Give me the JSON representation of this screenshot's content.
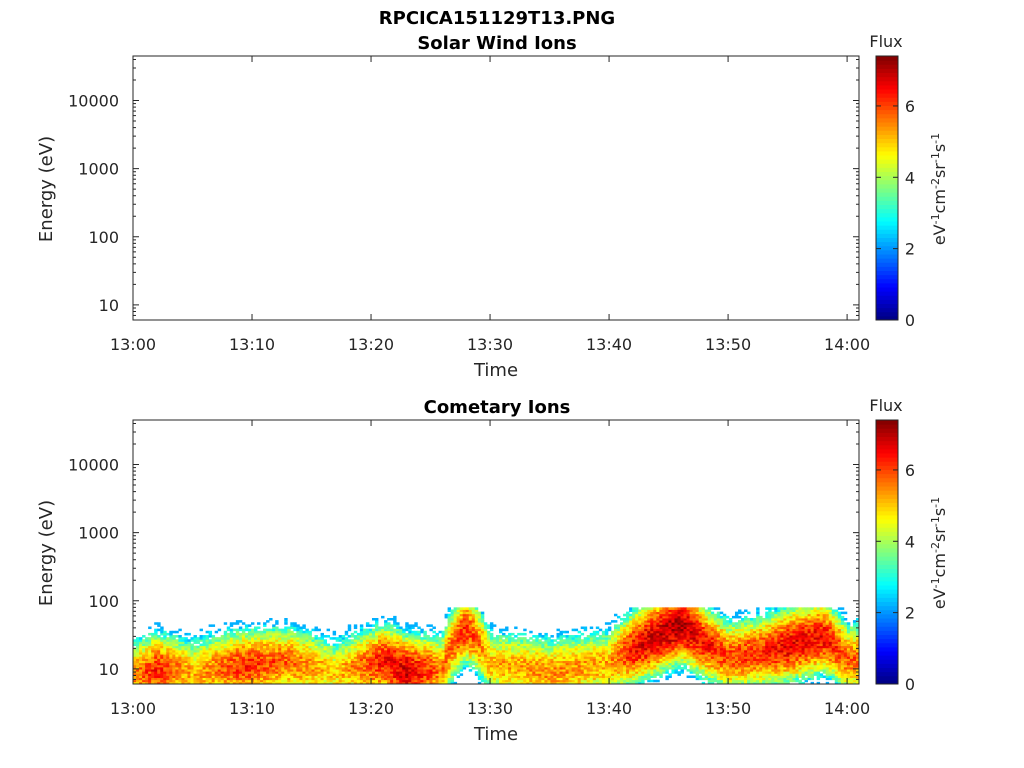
{
  "figure": {
    "title": "RPCICA151129T13.PNG"
  },
  "chart_data": [
    {
      "type": "heatmap",
      "title": "Solar Wind Ions",
      "xlabel": "Time",
      "ylabel": "Energy (eV)",
      "x_ticks": [
        "13:00",
        "13:10",
        "13:20",
        "13:30",
        "13:40",
        "13:50",
        "14:00"
      ],
      "xlim": [
        "13:00",
        "14:01"
      ],
      "y_ticks": [
        10,
        100,
        1000,
        10000
      ],
      "y_tick_labels": [
        "10",
        "100",
        "1000",
        "10000"
      ],
      "ylim": [
        6,
        45000
      ],
      "y_scale": "log",
      "colorbar": {
        "title": "Flux",
        "label": "eV-1cm-2sr-1s-1",
        "ticks": [
          0,
          2,
          4,
          6
        ],
        "range": [
          0,
          7.4
        ],
        "colormap": "jet"
      },
      "data": "empty"
    },
    {
      "type": "heatmap",
      "title": "Cometary Ions",
      "xlabel": "Time",
      "ylabel": "Energy (eV)",
      "x_ticks": [
        "13:00",
        "13:10",
        "13:20",
        "13:30",
        "13:40",
        "13:50",
        "14:00"
      ],
      "xlim": [
        "13:00",
        "14:01"
      ],
      "y_ticks": [
        10,
        100,
        1000,
        10000
      ],
      "y_tick_labels": [
        "10",
        "100",
        "1000",
        "10000"
      ],
      "ylim": [
        6,
        45000
      ],
      "y_scale": "log",
      "colorbar": {
        "title": "Flux",
        "label": "eV-1cm-2sr-1s-1",
        "ticks": [
          0,
          2,
          4,
          6
        ],
        "range": [
          0,
          7.4
        ],
        "colormap": "jet"
      },
      "peak_energy_eV": [
        {
          "time": "13:00",
          "energy": 8
        },
        {
          "time": "13:02",
          "energy": 10
        },
        {
          "time": "13:05",
          "energy": 9
        },
        {
          "time": "13:09",
          "energy": 11
        },
        {
          "time": "13:13",
          "energy": 13
        },
        {
          "time": "13:17",
          "energy": 9
        },
        {
          "time": "13:21",
          "energy": 13
        },
        {
          "time": "13:23",
          "energy": 9
        },
        {
          "time": "13:26",
          "energy": 10
        },
        {
          "time": "13:28",
          "energy": 40
        },
        {
          "time": "13:30",
          "energy": 12
        },
        {
          "time": "13:35",
          "energy": 9
        },
        {
          "time": "13:40",
          "energy": 12
        },
        {
          "time": "13:42",
          "energy": 20
        },
        {
          "time": "13:44",
          "energy": 30
        },
        {
          "time": "13:46",
          "energy": 45
        },
        {
          "time": "13:48",
          "energy": 25
        },
        {
          "time": "13:50",
          "energy": 15
        },
        {
          "time": "13:53",
          "energy": 18
        },
        {
          "time": "13:55",
          "energy": 22
        },
        {
          "time": "13:58",
          "energy": 30
        },
        {
          "time": "14:00",
          "energy": 14
        }
      ],
      "peak_flux": [
        {
          "time": "13:00",
          "flux": 5.5
        },
        {
          "time": "13:02",
          "flux": 6.3
        },
        {
          "time": "13:05",
          "flux": 5.2
        },
        {
          "time": "13:09",
          "flux": 6.2
        },
        {
          "time": "13:13",
          "flux": 5.8
        },
        {
          "time": "13:17",
          "flux": 5.0
        },
        {
          "time": "13:21",
          "flux": 6.4
        },
        {
          "time": "13:23",
          "flux": 6.8
        },
        {
          "time": "13:26",
          "flux": 5.6
        },
        {
          "time": "13:28",
          "flux": 6.2
        },
        {
          "time": "13:30",
          "flux": 5.2
        },
        {
          "time": "13:35",
          "flux": 5.5
        },
        {
          "time": "13:40",
          "flux": 5.3
        },
        {
          "time": "13:42",
          "flux": 6.5
        },
        {
          "time": "13:44",
          "flux": 6.9
        },
        {
          "time": "13:46",
          "flux": 7.1
        },
        {
          "time": "13:48",
          "flux": 6.4
        },
        {
          "time": "13:50",
          "flux": 6.0
        },
        {
          "time": "13:53",
          "flux": 6.2
        },
        {
          "time": "13:55",
          "flux": 6.6
        },
        {
          "time": "13:58",
          "flux": 6.5
        },
        {
          "time": "14:00",
          "flux": 5.8
        }
      ],
      "energy_max_eV": 80
    }
  ]
}
